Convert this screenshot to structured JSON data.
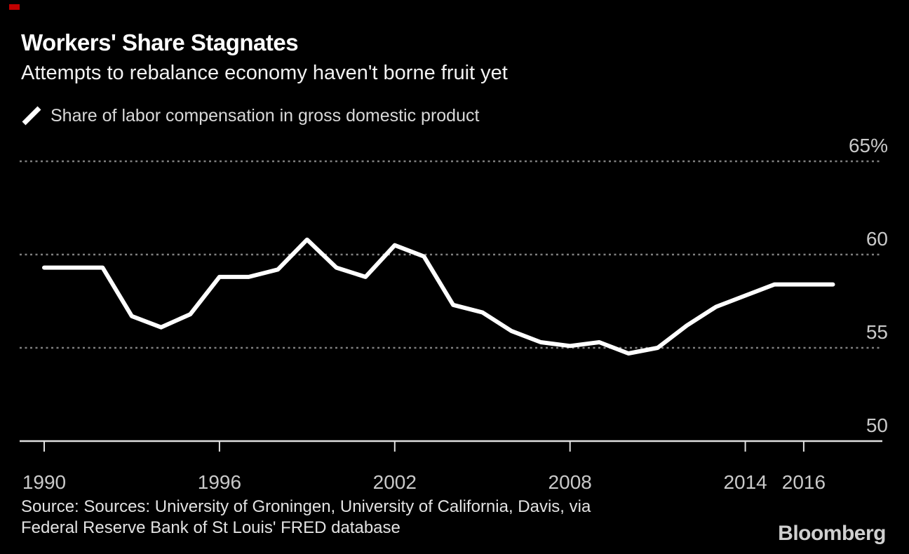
{
  "page": {
    "background_color": "#000000",
    "accent_marker_color": "#c00000"
  },
  "header": {
    "title": "Workers' Share Stagnates",
    "subtitle": "Attempts to rebalance economy haven't borne fruit yet"
  },
  "legend": {
    "label": "Share of labor compensation in gross domestic product",
    "marker_color": "#ffffff"
  },
  "chart_data": {
    "type": "line",
    "title": "Workers' Share Stagnates",
    "subtitle": "Attempts to rebalance economy haven't borne fruit yet",
    "series": [
      {
        "name": "Share of labor compensation in gross domestic product",
        "color": "#ffffff",
        "x": [
          1990,
          1991,
          1992,
          1993,
          1994,
          1995,
          1996,
          1997,
          1998,
          1999,
          2000,
          2001,
          2002,
          2003,
          2004,
          2005,
          2006,
          2007,
          2008,
          2009,
          2010,
          2011,
          2012,
          2013,
          2014,
          2015,
          2016,
          2017
        ],
        "values": [
          59.3,
          59.3,
          59.3,
          56.7,
          56.1,
          56.8,
          58.8,
          58.8,
          59.2,
          60.8,
          59.3,
          58.8,
          60.5,
          59.9,
          57.3,
          56.9,
          55.9,
          55.3,
          55.1,
          55.3,
          54.7,
          55.0,
          56.2,
          57.2,
          57.8,
          58.4,
          58.4,
          58.4
        ]
      }
    ],
    "xlabel": "",
    "ylabel": "",
    "xlim": [
      1990,
      2017
    ],
    "ylim": [
      50,
      65
    ],
    "x_ticks": [
      {
        "value": 1990,
        "label": "1990"
      },
      {
        "value": 1996,
        "label": "1996"
      },
      {
        "value": 2002,
        "label": "2002"
      },
      {
        "value": 2008,
        "label": "2008"
      },
      {
        "value": 2014,
        "label": "2014"
      },
      {
        "value": 2016,
        "label": "2016"
      }
    ],
    "y_ticks": [
      {
        "value": 65,
        "label": "65%"
      },
      {
        "value": 60,
        "label": "60"
      },
      {
        "value": 55,
        "label": "55"
      },
      {
        "value": 50,
        "label": "50"
      }
    ],
    "grid": "horizontal-dotted",
    "legend_position": "top-left",
    "colors": {
      "grid_color": "#7f7f7f",
      "axis_color": "#e0e0e0",
      "tick_label_color": "#c9c9c9",
      "line_color": "#ffffff"
    }
  },
  "footer": {
    "source_line1": "Source: Sources: University of Groningen, University of California, Davis, via",
    "source_line2": "Federal Reserve Bank of St Louis' FRED database",
    "brand": "Bloomberg"
  }
}
